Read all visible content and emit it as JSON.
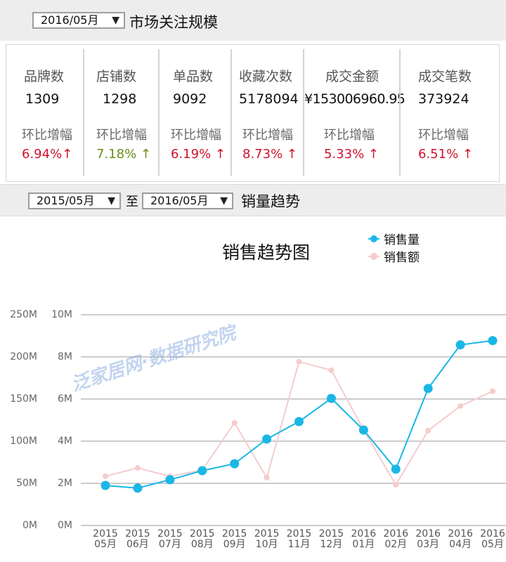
{
  "market_header": {
    "month_select": "2016/05月",
    "title": "市场关注规模"
  },
  "kpis": [
    {
      "name": "品牌数",
      "value": "1309",
      "change_label": "环比增幅",
      "change": "6.94%↑",
      "trend": "up",
      "color": "#d0122d"
    },
    {
      "name": "店铺数",
      "value": "1298",
      "change_label": "环比增幅",
      "change": "7.18% ↑",
      "trend": "up",
      "color": "#6a8e1a"
    },
    {
      "name": "单品数",
      "value": "9092",
      "change_label": "环比增幅",
      "change": "6.19% ↑",
      "trend": "up",
      "color": "#d0122d"
    },
    {
      "name": "收藏次数",
      "value": "5178094",
      "change_label": "环比增幅",
      "change": "8.73% ↑",
      "trend": "up",
      "color": "#d0122d"
    },
    {
      "name": "成交金额",
      "value": "¥153006960.95",
      "change_label": "环比增幅",
      "change": "5.33% ↑",
      "trend": "up",
      "color": "#d0122d"
    },
    {
      "name": "成交笔数",
      "value": "373924",
      "change_label": "环比增幅",
      "change": "6.51% ↑",
      "trend": "up",
      "color": "#d0122d"
    }
  ],
  "trend_header": {
    "from_select": "2015/05月",
    "to_word": "至",
    "to_select": "2016/05月",
    "title": "销量趋势"
  },
  "watermark": "泛家居网·数据研究院",
  "colors": {
    "volume": "#1ab7e6",
    "amount": "#f5cccc",
    "grid": "#9a9a9a",
    "up_red": "#d0122d",
    "up_green": "#6a8e1a"
  },
  "chart_data": {
    "type": "line",
    "title": "销售趋势图",
    "categories": [
      "2015 05月",
      "2015 06月",
      "2015 07月",
      "2015 08月",
      "2015 09月",
      "2015 10月",
      "2015 11月",
      "2015 12月",
      "2016 01月",
      "2016 02月",
      "2016 03月",
      "2016 04月",
      "2016 05月"
    ],
    "x_labels": [
      [
        "2015",
        "05月"
      ],
      [
        "2015",
        "06月"
      ],
      [
        "2015",
        "07月"
      ],
      [
        "2015",
        "08月"
      ],
      [
        "2015",
        "09月"
      ],
      [
        "2015",
        "10月"
      ],
      [
        "2015",
        "11月"
      ],
      [
        "2015",
        "12月"
      ],
      [
        "2016",
        "01月"
      ],
      [
        "2016",
        "02月"
      ],
      [
        "2016",
        "03月"
      ],
      [
        "2016",
        "04月"
      ],
      [
        "2016",
        "05月"
      ]
    ],
    "series": [
      {
        "name": "销售量",
        "axis": "right_inner",
        "unit": "M",
        "values": [
          1.9,
          1.77,
          2.17,
          2.6,
          2.93,
          4.1,
          4.93,
          6.03,
          4.53,
          2.67,
          6.5,
          8.57,
          8.77
        ]
      },
      {
        "name": "销售额",
        "axis": "left_outer",
        "unit": "M",
        "values": [
          58.3,
          68.3,
          58.3,
          65.8,
          121.7,
          56.7,
          194.2,
          184.2,
          113.3,
          48.3,
          112.5,
          141.7,
          159.2
        ]
      }
    ],
    "y_axes": [
      {
        "name": "销售额",
        "ticks": [
          "0M",
          "50M",
          "100M",
          "150M",
          "200M",
          "250M"
        ],
        "range": [
          0,
          250
        ]
      },
      {
        "name": "销售量",
        "ticks": [
          "0M",
          "2M",
          "4M",
          "6M",
          "8M",
          "10M"
        ],
        "range": [
          0,
          10
        ]
      }
    ],
    "xlabel": "",
    "ylabel": "",
    "grid": true,
    "legend": {
      "position": "top-right",
      "entries": [
        "销售量",
        "销售额"
      ]
    }
  }
}
